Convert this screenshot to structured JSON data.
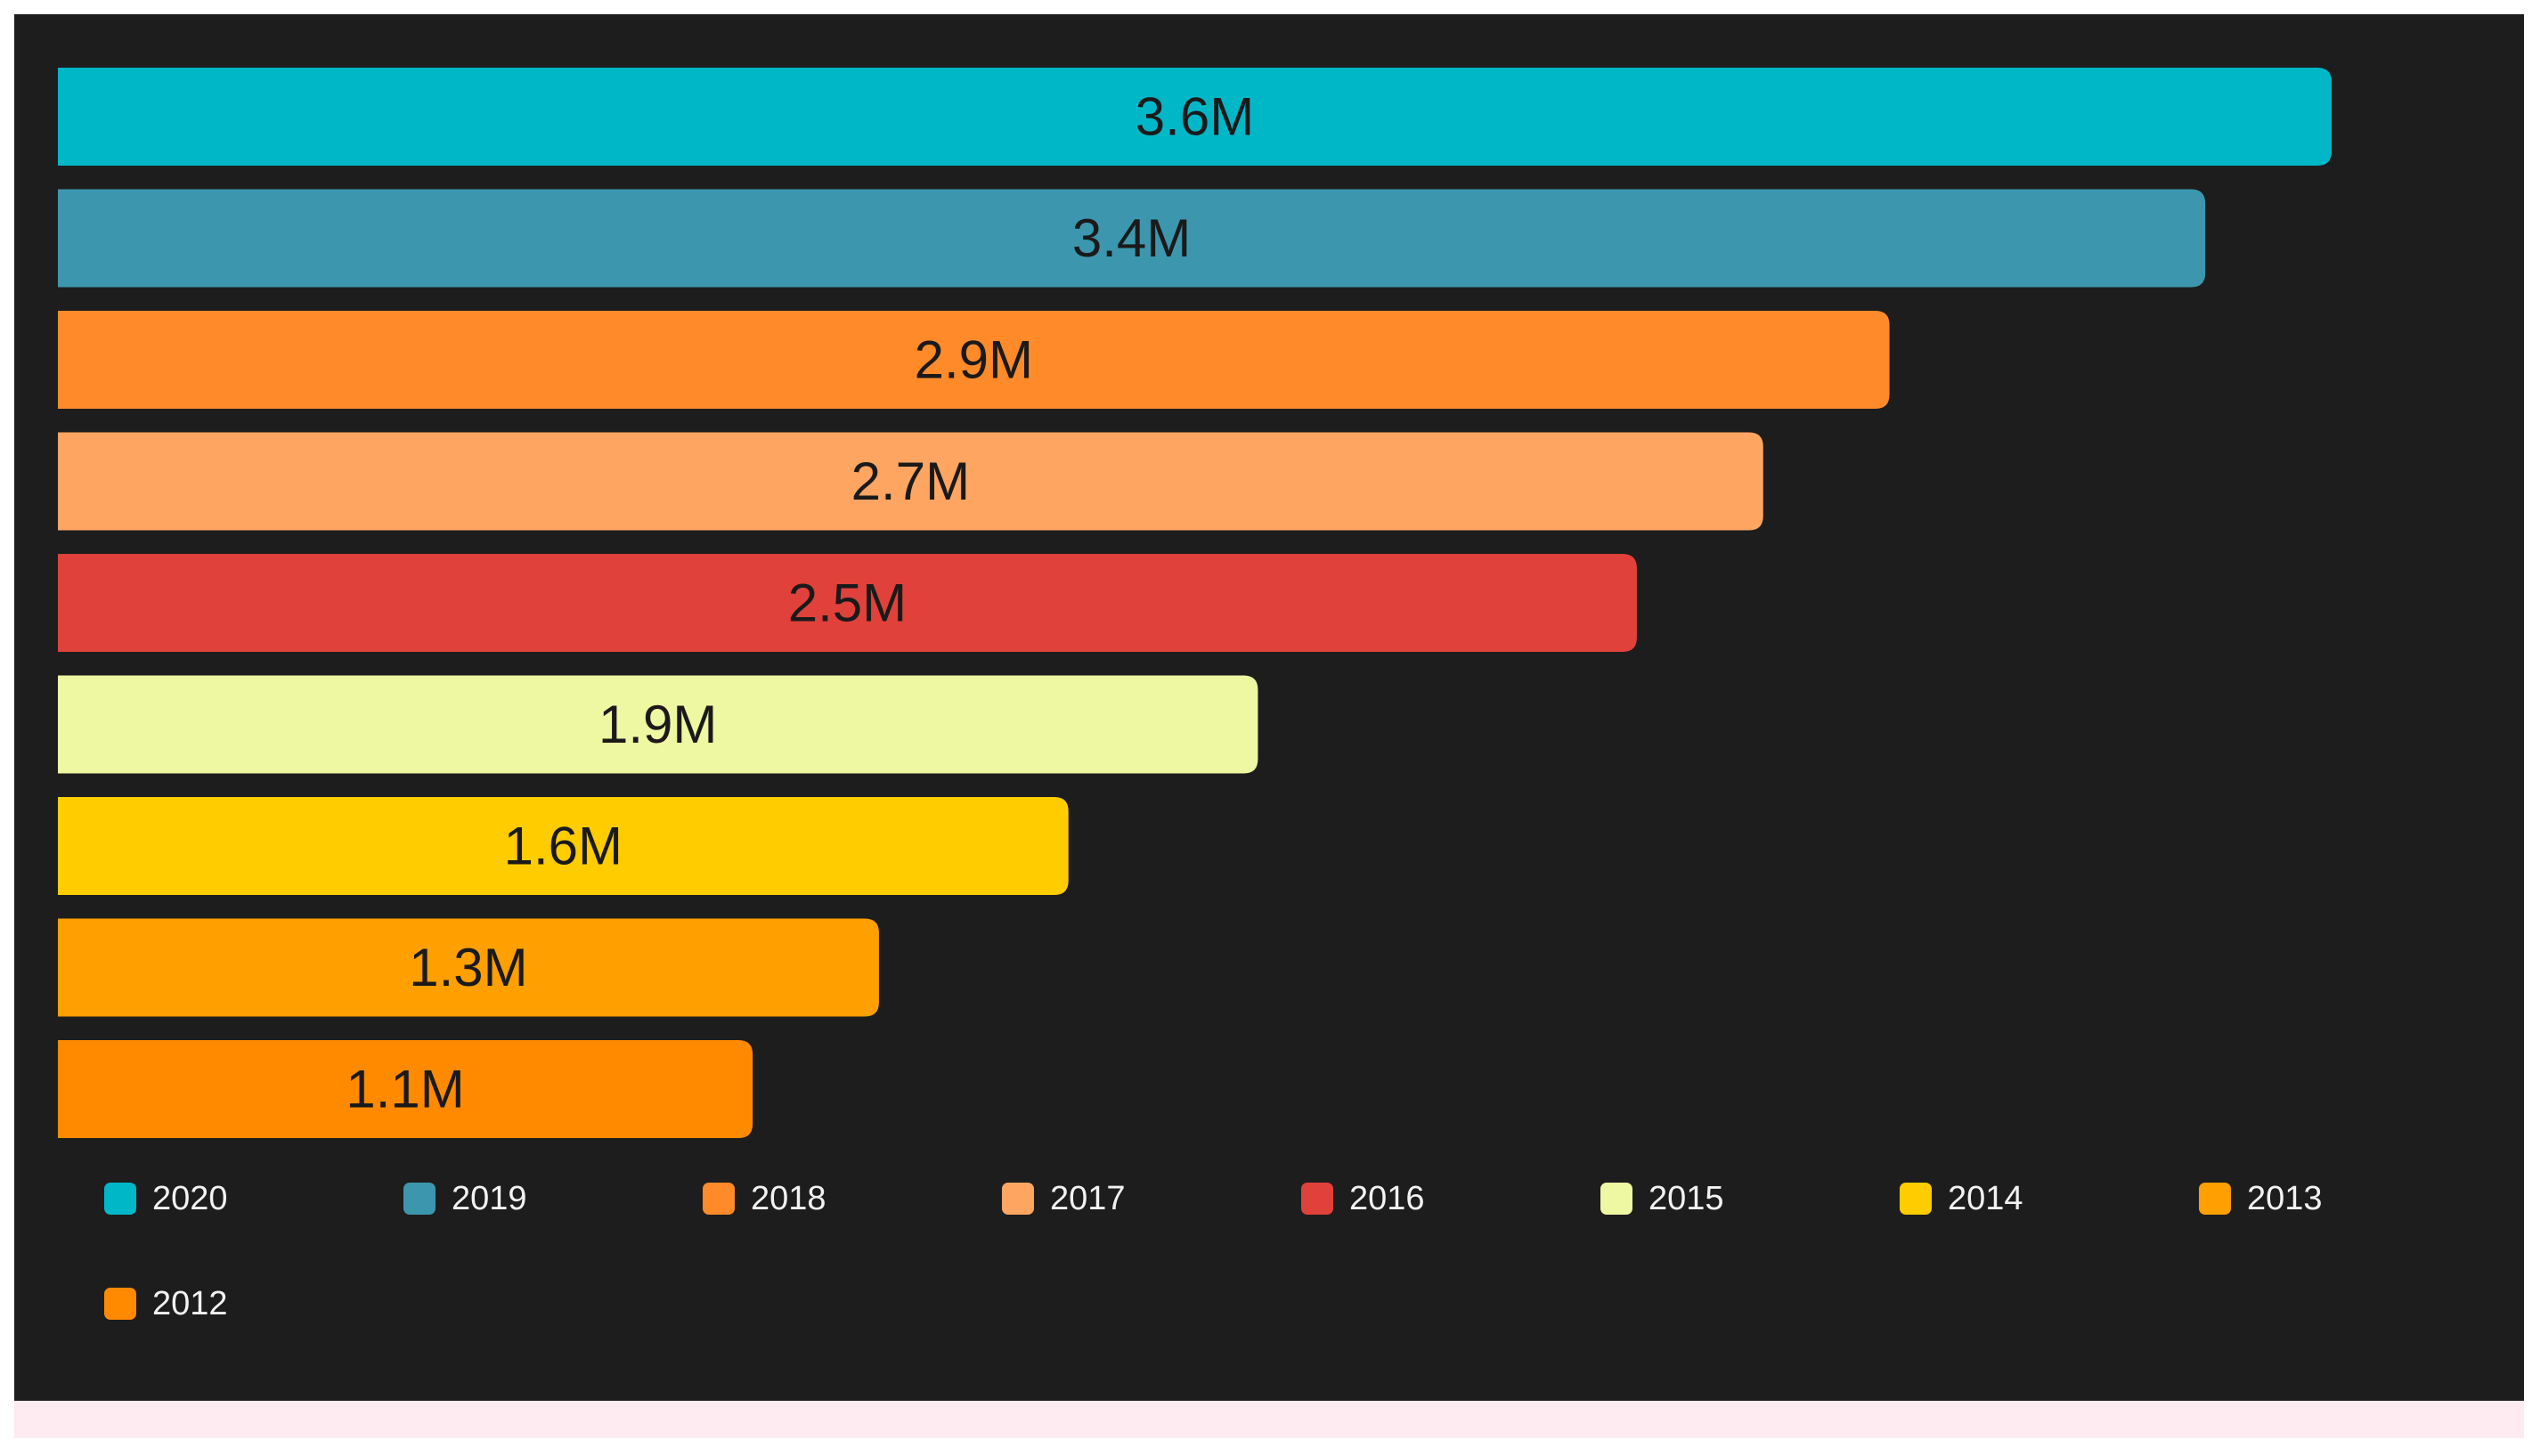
{
  "chart_data": {
    "type": "bar",
    "orientation": "horizontal",
    "categories": [
      "2020",
      "2019",
      "2018",
      "2017",
      "2016",
      "2015",
      "2014",
      "2013",
      "2012"
    ],
    "values": [
      3.6,
      3.4,
      2.9,
      2.7,
      2.5,
      1.9,
      1.6,
      1.3,
      1.1
    ],
    "value_unit": "M",
    "data_labels": [
      "3.6M",
      "3.4M",
      "2.9M",
      "2.7M",
      "2.5M",
      "1.9M",
      "1.6M",
      "1.3M",
      "1.1M"
    ],
    "colors": [
      "#00b7c8",
      "#3c97ae",
      "#ff8a2a",
      "#ffa562",
      "#e0413a",
      "#eef7a2",
      "#ffcc00",
      "#ff9f00",
      "#ff8a00"
    ],
    "background": "#1d1d1d",
    "xlim": [
      0,
      3.6
    ],
    "grid": false,
    "legend": {
      "placement": "bottom",
      "entries": [
        "2020",
        "2019",
        "2018",
        "2017",
        "2016",
        "2015",
        "2014",
        "2013",
        "2012"
      ]
    }
  }
}
